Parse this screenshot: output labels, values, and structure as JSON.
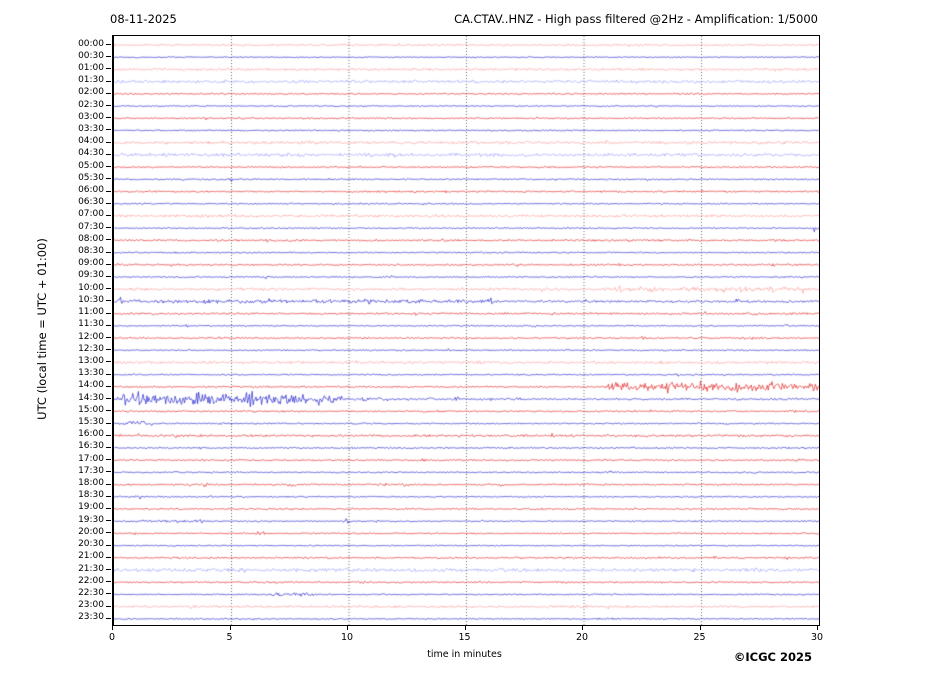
{
  "header": {
    "date": "08-11-2025",
    "title": "CA.CTAV..HNZ - High pass filtered @2Hz - Amplification: 1/5000"
  },
  "footer": {
    "copyright": "©ICGC 2025"
  },
  "chart_data": {
    "type": "line",
    "subtype": "helicorder-seismogram",
    "title": "CA.CTAV..HNZ - High pass filtered @2Hz - Amplification: 1/5000",
    "date": "08-11-2025",
    "xlabel": "time in minutes",
    "ylabel": "UTC (local time = UTC + 01:00)",
    "xlim": [
      0,
      30
    ],
    "x_ticks": [
      0,
      5,
      10,
      15,
      20,
      25,
      30
    ],
    "minutes_per_row": 30,
    "grid": "vertical dashed gridlines every 5 minutes",
    "legend": "red trace = hour rows (HH:00), blue trace = half-hour rows (HH:30); amplitude in arbitrary units, events listed as [start_min, end_min, amplitude]",
    "colors": {
      "hour": "#e02020",
      "half_hour": "#2222cc",
      "hour_light": "#ff9e9e",
      "half_hour_light": "#a0a0ff"
    },
    "rows": [
      {
        "label": "00:00",
        "color": "hour",
        "light": true,
        "base": 0.7,
        "events": []
      },
      {
        "label": "00:30",
        "color": "half_hour",
        "light": false,
        "base": 0.45,
        "events": []
      },
      {
        "label": "01:00",
        "color": "hour",
        "light": true,
        "base": 0.9,
        "events": []
      },
      {
        "label": "01:30",
        "color": "half_hour",
        "light": true,
        "base": 1.1,
        "events": []
      },
      {
        "label": "02:00",
        "color": "hour",
        "light": false,
        "base": 0.55,
        "events": []
      },
      {
        "label": "02:30",
        "color": "half_hour",
        "light": false,
        "base": 0.45,
        "events": [
          [
            22.9,
            23.2,
            2.2
          ]
        ]
      },
      {
        "label": "03:00",
        "color": "hour",
        "light": false,
        "base": 0.55,
        "events": []
      },
      {
        "label": "03:30",
        "color": "half_hour",
        "light": false,
        "base": 0.5,
        "events": []
      },
      {
        "label": "04:00",
        "color": "hour",
        "light": true,
        "base": 1.1,
        "events": []
      },
      {
        "label": "04:30",
        "color": "half_hour",
        "light": true,
        "base": 1.2,
        "events": []
      },
      {
        "label": "05:00",
        "color": "hour",
        "light": false,
        "base": 0.55,
        "events": [
          [
            18.4,
            18.7,
            1.2
          ]
        ]
      },
      {
        "label": "05:30",
        "color": "half_hour",
        "light": false,
        "base": 0.55,
        "events": [
          [
            4.8,
            5.2,
            1.2
          ]
        ]
      },
      {
        "label": "06:00",
        "color": "hour",
        "light": false,
        "base": 0.6,
        "events": [
          [
            12.7,
            13.1,
            1.3
          ],
          [
            13.9,
            14.3,
            1.3
          ]
        ]
      },
      {
        "label": "06:30",
        "color": "half_hour",
        "light": false,
        "base": 0.5,
        "events": [
          [
            9.5,
            9.9,
            0.9
          ],
          [
            13.0,
            13.4,
            0.9
          ]
        ]
      },
      {
        "label": "07:00",
        "color": "hour",
        "light": true,
        "base": 1.0,
        "events": [
          [
            3.5,
            3.9,
            1.4
          ],
          [
            10.3,
            10.7,
            1.3
          ]
        ]
      },
      {
        "label": "07:30",
        "color": "half_hour",
        "light": false,
        "base": 0.5,
        "events": [
          [
            1.7,
            2.6,
            0.8
          ],
          [
            29.7,
            30,
            2.6
          ]
        ]
      },
      {
        "label": "08:00",
        "color": "hour",
        "light": false,
        "base": 0.7,
        "events": [
          [
            6.3,
            6.8,
            1.4
          ],
          [
            13.8,
            14.3,
            1.5
          ],
          [
            19.8,
            20.3,
            1.3
          ]
        ]
      },
      {
        "label": "08:30",
        "color": "half_hour",
        "light": false,
        "base": 0.5,
        "events": []
      },
      {
        "label": "09:00",
        "color": "hour",
        "light": false,
        "base": 0.65,
        "events": [
          [
            2.3,
            2.7,
            1.5
          ],
          [
            16.9,
            17.3,
            1.4
          ],
          [
            21.3,
            21.7,
            1.5
          ],
          [
            27.8,
            28.2,
            1.4
          ]
        ]
      },
      {
        "label": "09:30",
        "color": "half_hour",
        "light": false,
        "base": 0.5,
        "events": [
          [
            6.3,
            6.7,
            1.1
          ]
        ]
      },
      {
        "label": "10:00",
        "color": "hour",
        "light": true,
        "base": 1.0,
        "events": [
          [
            20.5,
            30,
            1.6
          ],
          [
            21.3,
            21.8,
            2.6
          ],
          [
            22.8,
            23.2,
            2.4
          ],
          [
            26.4,
            26.8,
            3.6
          ],
          [
            27.9,
            28.3,
            2.6
          ]
        ]
      },
      {
        "label": "10:30",
        "color": "half_hour",
        "light": false,
        "base": 0.8,
        "events": [
          [
            0,
            16.5,
            1.3
          ],
          [
            0.1,
            0.5,
            3.2
          ],
          [
            2.4,
            2.7,
            2.2
          ],
          [
            3.8,
            4.2,
            3.0
          ],
          [
            6.3,
            6.8,
            3.0
          ],
          [
            8.7,
            9.0,
            2.2
          ],
          [
            10.6,
            11.0,
            3.0
          ],
          [
            12.9,
            13.3,
            2.0
          ],
          [
            15.8,
            16.2,
            3.0
          ],
          [
            26.3,
            26.7,
            2.0
          ],
          [
            28.3,
            28.8,
            1.8
          ]
        ]
      },
      {
        "label": "11:00",
        "color": "hour",
        "light": false,
        "base": 0.7,
        "events": [
          [
            1.5,
            2.0,
            1.0
          ],
          [
            11.0,
            11.4,
            1.0
          ],
          [
            16.5,
            16.9,
            1.1
          ],
          [
            18.4,
            18.8,
            1.1
          ],
          [
            26.6,
            27.6,
            1.2
          ]
        ]
      },
      {
        "label": "11:30",
        "color": "half_hour",
        "light": false,
        "base": 0.5,
        "events": [
          [
            2.9,
            3.3,
            1.6
          ],
          [
            17.7,
            18.1,
            1.0
          ],
          [
            24.5,
            24.9,
            1.0
          ],
          [
            28.4,
            28.8,
            1.2
          ]
        ]
      },
      {
        "label": "12:00",
        "color": "hour",
        "light": false,
        "base": 0.6,
        "events": [
          [
            10.5,
            10.9,
            1.5
          ],
          [
            22.3,
            22.7,
            1.2
          ],
          [
            26.9,
            27.3,
            1.1
          ]
        ]
      },
      {
        "label": "12:30",
        "color": "half_hour",
        "light": false,
        "base": 0.5,
        "events": [
          [
            14.0,
            14.4,
            0.9
          ],
          [
            24.0,
            24.4,
            0.9
          ]
        ]
      },
      {
        "label": "13:00",
        "color": "hour",
        "light": true,
        "base": 1.0,
        "events": [
          [
            23.0,
            23.5,
            1.4
          ]
        ]
      },
      {
        "label": "13:30",
        "color": "half_hour",
        "light": false,
        "base": 0.5,
        "events": [
          [
            23.8,
            24.2,
            1.2
          ],
          [
            28.8,
            29.2,
            1.0
          ]
        ]
      },
      {
        "label": "14:00",
        "color": "hour",
        "light": false,
        "base": 0.6,
        "events": [
          [
            20.8,
            30,
            3.0
          ],
          [
            23.3,
            23.7,
            5.0
          ],
          [
            26.3,
            26.7,
            5.0
          ],
          [
            27.8,
            28.2,
            4.5
          ],
          [
            29.5,
            30,
            5.0
          ]
        ]
      },
      {
        "label": "14:30",
        "color": "half_hour",
        "light": false,
        "base": 0.7,
        "events": [
          [
            0,
            8.3,
            4.0
          ],
          [
            0.3,
            0.7,
            7.5
          ],
          [
            0.9,
            1.2,
            6.5
          ],
          [
            3.3,
            3.7,
            7.0
          ],
          [
            4.9,
            5.3,
            6.0
          ],
          [
            5.4,
            6.1,
            6.5
          ],
          [
            7.9,
            8.3,
            6.0
          ],
          [
            8.3,
            10.0,
            2.8
          ],
          [
            10.0,
            12.0,
            1.5
          ],
          [
            13.3,
            13.7,
            2.2
          ],
          [
            14.4,
            14.8,
            2.0
          ],
          [
            15.9,
            16.3,
            1.5
          ]
        ]
      },
      {
        "label": "15:00",
        "color": "hour",
        "light": false,
        "base": 0.6,
        "events": [
          [
            28.7,
            29.1,
            1.3
          ]
        ]
      },
      {
        "label": "15:30",
        "color": "half_hour",
        "light": false,
        "base": 0.5,
        "events": [
          [
            0,
            2.0,
            1.8
          ],
          [
            4.4,
            4.8,
            1.2
          ],
          [
            9.9,
            10.3,
            1.0
          ],
          [
            25.9,
            26.3,
            0.9
          ]
        ]
      },
      {
        "label": "16:00",
        "color": "hour",
        "light": false,
        "base": 0.85,
        "events": [
          [
            9.5,
            10.0,
            1.2
          ],
          [
            14.5,
            15.0,
            1.2
          ],
          [
            18.5,
            19.0,
            1.2
          ]
        ]
      },
      {
        "label": "16:30",
        "color": "half_hour",
        "light": false,
        "base": 0.55,
        "events": [
          [
            3.4,
            3.8,
            1.0
          ],
          [
            9.9,
            10.3,
            1.0
          ],
          [
            21.9,
            22.3,
            0.9
          ]
        ]
      },
      {
        "label": "17:00",
        "color": "hour",
        "light": false,
        "base": 0.6,
        "events": [
          [
            3.7,
            4.1,
            1.3
          ],
          [
            13.0,
            13.4,
            1.3
          ],
          [
            28.9,
            29.3,
            1.2
          ]
        ]
      },
      {
        "label": "17:30",
        "color": "half_hour",
        "light": false,
        "base": 0.5,
        "events": [
          [
            2.4,
            2.8,
            1.0
          ],
          [
            20.9,
            21.3,
            1.0
          ],
          [
            27.0,
            27.4,
            0.8
          ]
        ]
      },
      {
        "label": "18:00",
        "color": "hour",
        "light": false,
        "base": 0.65,
        "events": [
          [
            3.7,
            4.1,
            1.8
          ],
          [
            7.4,
            7.9,
            1.6
          ],
          [
            11.3,
            11.7,
            1.7
          ],
          [
            12.2,
            12.6,
            1.6
          ],
          [
            16.3,
            16.7,
            1.3
          ]
        ]
      },
      {
        "label": "18:30",
        "color": "half_hour",
        "light": false,
        "base": 0.5,
        "events": [
          [
            0.8,
            1.3,
            1.6
          ],
          [
            10.8,
            11.2,
            1.1
          ]
        ]
      },
      {
        "label": "19:00",
        "color": "hour",
        "light": false,
        "base": 0.6,
        "events": []
      },
      {
        "label": "19:30",
        "color": "half_hour",
        "light": false,
        "base": 0.55,
        "events": [
          [
            0,
            4.0,
            0.9
          ],
          [
            3.5,
            3.9,
            1.2
          ],
          [
            9.7,
            10.1,
            2.4
          ],
          [
            11.0,
            11.4,
            1.0
          ]
        ]
      },
      {
        "label": "20:00",
        "color": "hour",
        "light": false,
        "base": 0.55,
        "events": [
          [
            5.9,
            6.5,
            1.7
          ]
        ]
      },
      {
        "label": "20:30",
        "color": "half_hour",
        "light": false,
        "base": 0.45,
        "events": []
      },
      {
        "label": "21:00",
        "color": "hour",
        "light": false,
        "base": 0.65,
        "events": [
          [
            21.3,
            21.7,
            1.0
          ],
          [
            25.4,
            25.8,
            1.1
          ],
          [
            28.4,
            28.8,
            1.0
          ]
        ]
      },
      {
        "label": "21:30",
        "color": "half_hour",
        "light": true,
        "base": 1.25,
        "events": []
      },
      {
        "label": "22:00",
        "color": "hour",
        "light": false,
        "base": 0.6,
        "events": [
          [
            10.3,
            10.7,
            1.5
          ]
        ]
      },
      {
        "label": "22:30",
        "color": "half_hour",
        "light": false,
        "base": 0.45,
        "events": [
          [
            6.3,
            8.9,
            1.3
          ]
        ]
      },
      {
        "label": "23:00",
        "color": "hour",
        "light": true,
        "base": 0.9,
        "events": []
      },
      {
        "label": "23:30",
        "color": "half_hour",
        "light": false,
        "base": 0.5,
        "events": [
          [
            20.0,
            22.0,
            0.7
          ]
        ]
      }
    ]
  }
}
